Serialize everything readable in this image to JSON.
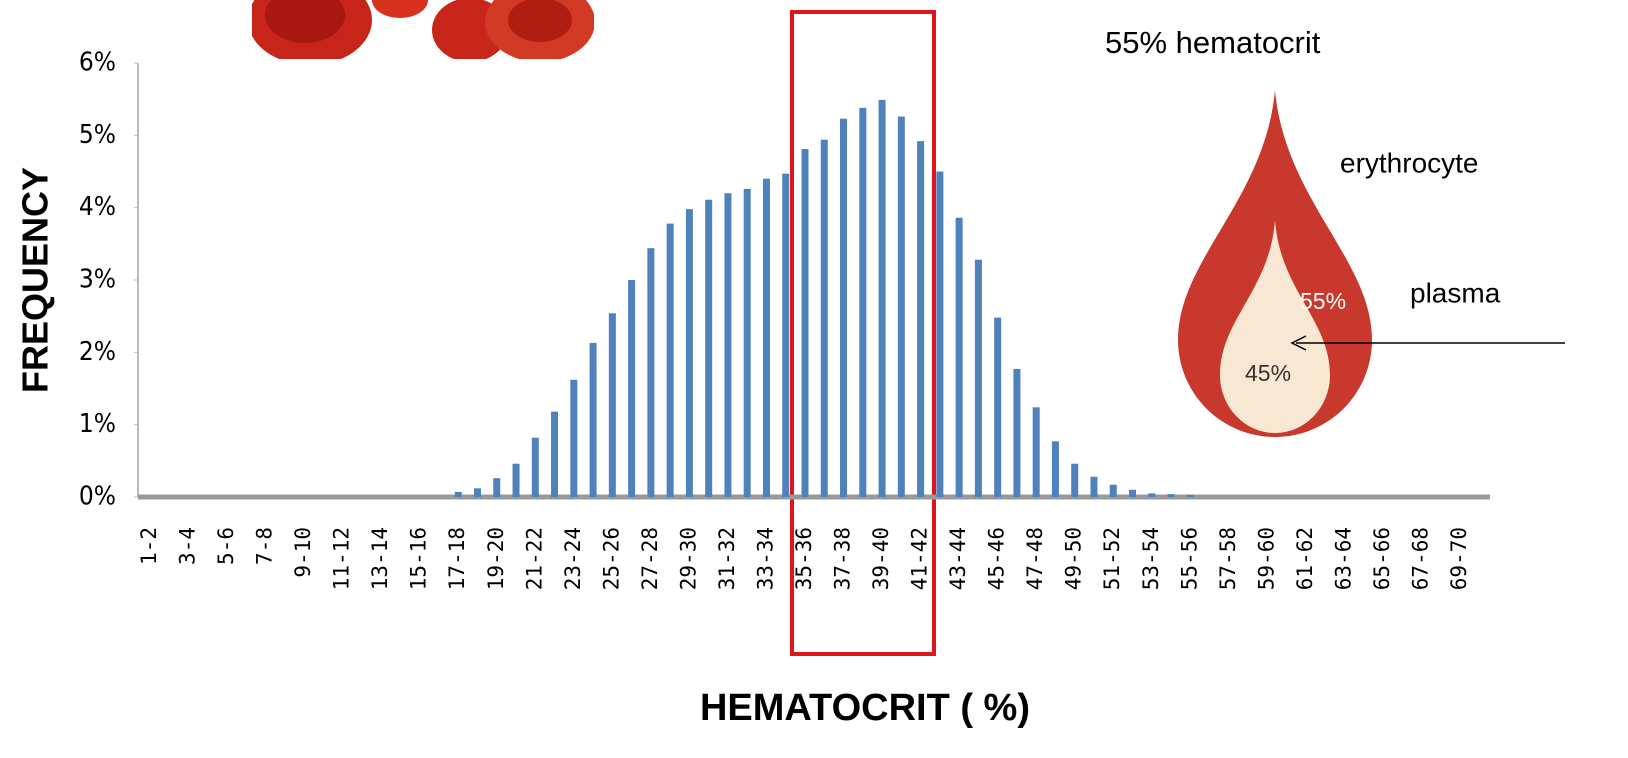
{
  "chart_data": {
    "type": "bar",
    "y_label": "FREQUENCY",
    "x_label": "HEMATOCRIT ( %)",
    "annotations": [
      "55% hematocrit",
      "erythrocyte",
      "plasma",
      "55%",
      "45%"
    ],
    "categories": [
      "1-2",
      null,
      "3-4",
      null,
      "5-6",
      null,
      "7-8",
      null,
      "9-10",
      null,
      "11-12",
      null,
      "13-14",
      null,
      "15-16",
      null,
      "17-18",
      null,
      "19-20",
      null,
      "21-22",
      null,
      "23-24",
      null,
      "25-26",
      null,
      "27-28",
      null,
      "29-30",
      null,
      "31-32",
      null,
      "33-34",
      null,
      "35-36",
      null,
      "37-38",
      null,
      "39-40",
      null,
      "41-42",
      null,
      "43-44",
      null,
      "45-46",
      null,
      "47-48",
      null,
      "49-50",
      null,
      "51-52",
      null,
      "53-54",
      null,
      "55-56",
      null,
      "57-58",
      null,
      "59-60",
      null,
      "61-62",
      null,
      "63-64",
      null,
      "65-66",
      null,
      "67-68",
      null,
      "69-70",
      null
    ],
    "values": [
      0,
      0,
      0,
      0,
      0,
      0,
      0,
      0,
      0,
      0,
      0,
      0,
      0,
      0,
      0,
      0,
      0.07,
      0.12,
      0.26,
      0.46,
      0.82,
      1.18,
      1.62,
      2.13,
      2.54,
      3.0,
      3.44,
      3.78,
      3.98,
      4.11,
      4.2,
      4.26,
      4.4,
      4.47,
      4.81,
      4.94,
      5.23,
      5.38,
      5.49,
      5.26,
      4.92,
      4.5,
      3.86,
      3.28,
      2.48,
      1.77,
      1.24,
      0.77,
      0.46,
      0.28,
      0.17,
      0.1,
      0.05,
      0.04,
      0.03,
      0,
      0,
      0,
      0,
      0,
      0,
      0,
      0,
      0,
      0,
      0,
      0,
      0,
      0,
      0
    ],
    "color": "#4f81bd",
    "ylim": [
      0,
      6
    ],
    "yticks": [
      {
        "value": 0,
        "label": "0%"
      },
      {
        "value": 1,
        "label": "1%"
      },
      {
        "value": 2,
        "label": "2%"
      },
      {
        "value": 3,
        "label": "3%"
      },
      {
        "value": 4,
        "label": "4%"
      },
      {
        "value": 5,
        "label": "5%"
      },
      {
        "value": 6,
        "label": "6%"
      }
    ],
    "grid": false
  }
}
